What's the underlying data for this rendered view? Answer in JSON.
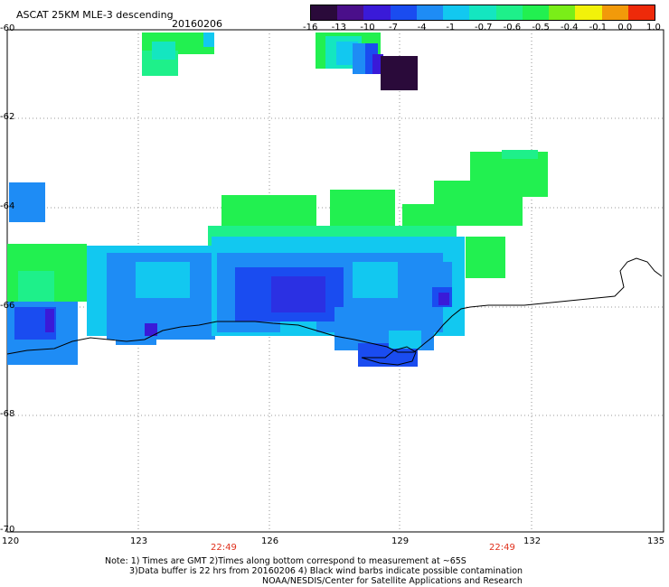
{
  "header": {
    "title": "ASCAT 25KM MLE-3 descending",
    "date": "20160206"
  },
  "colorbar": {
    "labels": [
      "-16",
      "-13",
      "-10",
      "-7",
      "-4",
      "-1",
      "-0.7",
      "-0.6",
      "-0.5",
      "-0.4",
      "-0.1",
      "0.0",
      "1.0"
    ],
    "colors": [
      "#2a0a3a",
      "#4a0f8a",
      "#3a1ad8",
      "#1a4cf0",
      "#1e8cf5",
      "#12c8f0",
      "#14e6c0",
      "#1ef08a",
      "#22f050",
      "#7aee18",
      "#f2f20a",
      "#f29a0a",
      "#ee2a0a"
    ]
  },
  "axes": {
    "x_ticks": [
      "120",
      "123",
      "126",
      "129",
      "132",
      "135"
    ],
    "y_ticks": [
      "-60",
      "-62",
      "-64",
      "-66",
      "-68",
      "-70"
    ],
    "time_labels": [
      "22:49",
      "22:49"
    ]
  },
  "notes": {
    "line1": "Note: 1) Times are GMT 2)Times along bottom correspond to measurement at ~65S",
    "line2": "3)Data buffer is 22 hrs from 20160206 4) Black wind barbs indicate possible contamination",
    "line3": "NOAA/NESDIS/Center for Satellite Applications and Research"
  }
}
